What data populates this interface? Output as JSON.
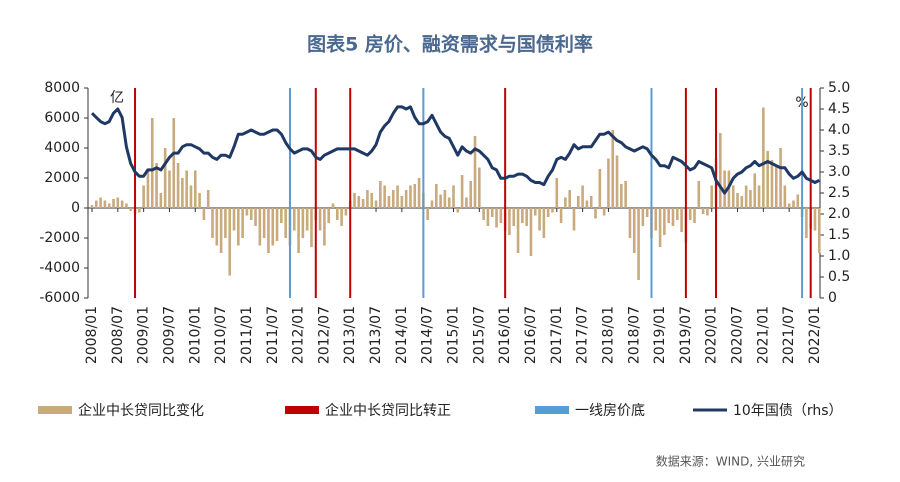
{
  "chart_data": {
    "type": "combo",
    "title": "图表5  房价、融资需求与国债利率",
    "y_unit": "亿",
    "y2_unit": "%",
    "source": "数据来源：WIND, 兴业研究",
    "categories": [
      "2008/01",
      null,
      null,
      null,
      null,
      null,
      "2008/07",
      null,
      null,
      null,
      null,
      null,
      "2009/01",
      null,
      null,
      null,
      null,
      null,
      "2009/07",
      null,
      null,
      null,
      null,
      null,
      "2010/01",
      null,
      null,
      null,
      null,
      null,
      "2010/07",
      null,
      null,
      null,
      null,
      null,
      "2011/01",
      null,
      null,
      null,
      null,
      null,
      "2011/07",
      null,
      null,
      null,
      null,
      null,
      "2012/01",
      null,
      null,
      null,
      null,
      null,
      "2012/07",
      null,
      null,
      null,
      null,
      null,
      "2013/01",
      null,
      null,
      null,
      null,
      null,
      "2013/07",
      null,
      null,
      null,
      null,
      null,
      "2014/01",
      null,
      null,
      null,
      null,
      null,
      "2014/07",
      null,
      null,
      null,
      null,
      null,
      "2015/01",
      null,
      null,
      null,
      null,
      null,
      "2015/07",
      null,
      null,
      null,
      null,
      null,
      "2016/01",
      null,
      null,
      null,
      null,
      null,
      "2016/07",
      null,
      null,
      null,
      null,
      null,
      "2017/01",
      null,
      null,
      null,
      null,
      null,
      "2017/07",
      null,
      null,
      null,
      null,
      null,
      "2018/01",
      null,
      null,
      null,
      null,
      null,
      "2018/07",
      null,
      null,
      null,
      null,
      null,
      "2019/01",
      null,
      null,
      null,
      null,
      null,
      "2019/07",
      null,
      null,
      null,
      null,
      null,
      "2020/01",
      null,
      null,
      null,
      null,
      null,
      "2020/07",
      null,
      null,
      null,
      null,
      null,
      "2021/01",
      null,
      null,
      null,
      null,
      null,
      "2021/07",
      null,
      null,
      null,
      null,
      null,
      "2022/01",
      null
    ],
    "series": [
      {
        "name": "企业中长贷同比变化",
        "type": "bar",
        "color": "#c9aa7c",
        "values": [
          200,
          500,
          700,
          500,
          300,
          600,
          700,
          500,
          300,
          -200,
          -400,
          -300,
          1500,
          2500,
          6000,
          3000,
          1000,
          4000,
          2500,
          6000,
          3000,
          2000,
          2500,
          1500,
          2500,
          1000,
          -800,
          1200,
          -2000,
          -2500,
          -3000,
          -2000,
          -4500,
          -1500,
          -2500,
          -2000,
          -500,
          -800,
          -1200,
          -2500,
          -2000,
          -3000,
          -2500,
          -2200,
          -1000,
          -2000,
          -2500,
          -1500,
          -3000,
          -2000,
          -1500,
          -2600,
          -800,
          -1500,
          -2500,
          -1000,
          300,
          -800,
          -1200,
          -500,
          500,
          1000,
          800,
          600,
          1200,
          1000,
          500,
          1800,
          1500,
          800,
          1200,
          1500,
          800,
          1200,
          1500,
          1600,
          2000,
          1000,
          -800,
          500,
          1600,
          900,
          1200,
          700,
          1500,
          -300,
          2200,
          700,
          1800,
          4800,
          2700,
          -800,
          -1200,
          -600,
          -1300,
          -1000,
          -1500,
          -1800,
          -1200,
          -3000,
          -1000,
          -1200,
          -3200,
          -500,
          -1500,
          -2000,
          -600,
          -300,
          2000,
          -1000,
          700,
          1200,
          -1500,
          800,
          1500,
          500,
          800,
          -700,
          2600,
          -500,
          3300,
          5200,
          3500,
          1600,
          1800,
          -2000,
          -3000,
          -4800,
          -1200,
          -600,
          -2000,
          -1500,
          -2600,
          -1800,
          -1000,
          -1200,
          -800,
          -1600,
          -2300,
          -800,
          -1000,
          1800,
          -400,
          -500,
          1500,
          3300,
          5000,
          2500,
          2500,
          1500,
          1000,
          800,
          1500,
          1200,
          2300,
          1500,
          6700,
          3800,
          3200,
          2800,
          4000,
          1500,
          300,
          500,
          900,
          -600,
          -2000,
          -1400,
          -1500,
          -3000
        ]
      },
      {
        "name": "10年国债（rhs）",
        "type": "line",
        "axis": "y2",
        "color": "#1f3864",
        "values": [
          4.4,
          4.3,
          4.2,
          4.15,
          4.2,
          4.4,
          4.5,
          4.3,
          3.6,
          3.2,
          3.0,
          2.9,
          2.9,
          3.05,
          3.05,
          3.1,
          3.05,
          3.2,
          3.35,
          3.45,
          3.45,
          3.6,
          3.65,
          3.65,
          3.6,
          3.55,
          3.45,
          3.45,
          3.35,
          3.3,
          3.4,
          3.4,
          3.35,
          3.6,
          3.9,
          3.9,
          3.95,
          4.0,
          3.95,
          3.9,
          3.9,
          3.95,
          4.0,
          4.0,
          3.9,
          3.7,
          3.55,
          3.45,
          3.5,
          3.55,
          3.55,
          3.5,
          3.35,
          3.3,
          3.4,
          3.45,
          3.5,
          3.55,
          3.55,
          3.55,
          3.55,
          3.55,
          3.5,
          3.45,
          3.4,
          3.5,
          3.65,
          3.95,
          4.1,
          4.2,
          4.4,
          4.55,
          4.55,
          4.5,
          4.55,
          4.3,
          4.15,
          4.15,
          4.2,
          4.35,
          4.15,
          3.95,
          3.85,
          3.8,
          3.6,
          3.4,
          3.6,
          3.5,
          3.45,
          3.55,
          3.5,
          3.4,
          3.3,
          3.1,
          3.05,
          2.85,
          2.85,
          2.9,
          2.9,
          2.95,
          2.95,
          2.9,
          2.8,
          2.75,
          2.75,
          2.7,
          2.9,
          3.05,
          3.3,
          3.35,
          3.3,
          3.45,
          3.65,
          3.55,
          3.6,
          3.6,
          3.6,
          3.75,
          3.9,
          3.9,
          3.95,
          3.85,
          3.75,
          3.7,
          3.6,
          3.55,
          3.5,
          3.55,
          3.6,
          3.55,
          3.4,
          3.3,
          3.15,
          3.15,
          3.1,
          3.35,
          3.3,
          3.25,
          3.15,
          3.05,
          3.1,
          3.25,
          3.2,
          3.15,
          3.1,
          2.8,
          2.65,
          2.5,
          2.65,
          2.85,
          2.95,
          3.0,
          3.1,
          3.15,
          3.25,
          3.15,
          3.2,
          3.25,
          3.2,
          3.15,
          3.1,
          3.1,
          2.95,
          2.85,
          2.9,
          3.0,
          2.85,
          2.8,
          2.75,
          2.8
        ]
      }
    ],
    "events": [
      {
        "name": "企业中长贷同比转正",
        "color": "#c00000",
        "x": [
          10,
          52,
          60,
          96,
          138,
          145,
          167
        ]
      },
      {
        "name": "一线房价底",
        "color": "#5b9bd5",
        "x": [
          46,
          77,
          130,
          165
        ]
      }
    ],
    "ylim": [
      -6000,
      8000
    ],
    "yticks": [
      -6000,
      -4000,
      -2000,
      0,
      2000,
      4000,
      6000,
      8000
    ],
    "y2lim": [
      0,
      5
    ],
    "y2ticks": [
      0,
      {
        "value": 0.5,
        "label": "0.5"
      },
      {
        "value": 1,
        "label": "1.0"
      },
      {
        "value": 1.5,
        "label": "1.5"
      },
      {
        "value": 2,
        "label": "2.0"
      },
      {
        "value": 2.5,
        "label": "2.5"
      },
      {
        "value": 3,
        "label": "3.0"
      },
      {
        "value": 3.5,
        "label": "3.5"
      },
      {
        "value": 4,
        "label": "4.0"
      },
      {
        "value": 4.5,
        "label": "4.5"
      },
      {
        "value": 5,
        "label": "5.0"
      }
    ]
  }
}
